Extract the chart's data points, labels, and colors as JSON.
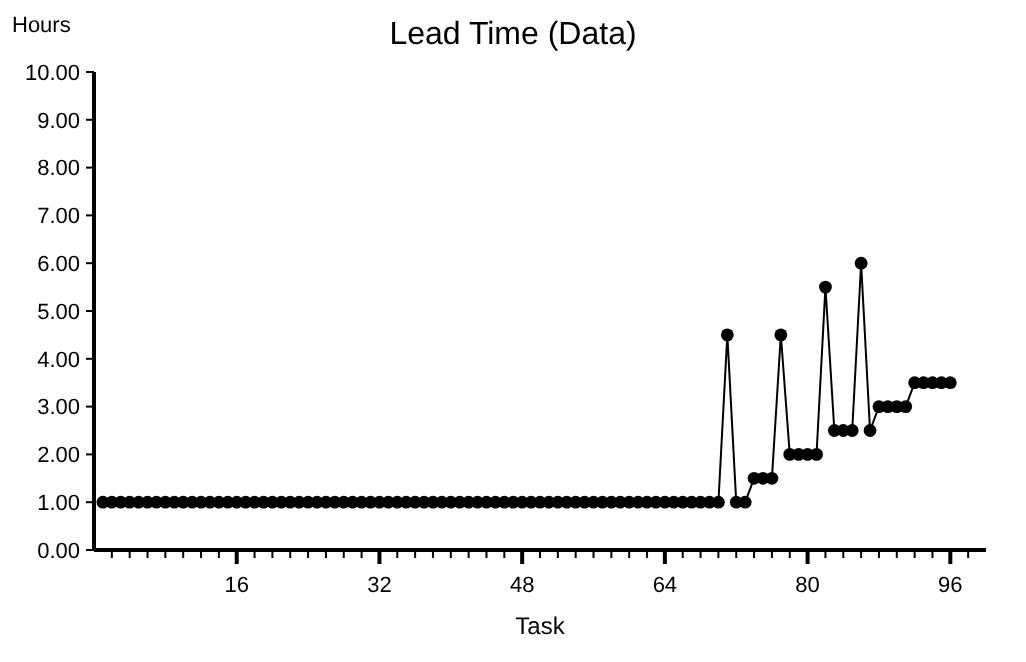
{
  "chart_data": {
    "type": "line",
    "title": "Lead Time (Data)",
    "xlabel": "Task",
    "ylabel": "Hours",
    "x": [
      1,
      2,
      3,
      4,
      5,
      6,
      7,
      8,
      9,
      10,
      11,
      12,
      13,
      14,
      15,
      16,
      17,
      18,
      19,
      20,
      21,
      22,
      23,
      24,
      25,
      26,
      27,
      28,
      29,
      30,
      31,
      32,
      33,
      34,
      35,
      36,
      37,
      38,
      39,
      40,
      41,
      42,
      43,
      44,
      45,
      46,
      47,
      48,
      49,
      50,
      51,
      52,
      53,
      54,
      55,
      56,
      57,
      58,
      59,
      60,
      61,
      62,
      63,
      64,
      65,
      66,
      67,
      68,
      69,
      70,
      71,
      72,
      73,
      74,
      75,
      76,
      77,
      78,
      79,
      80,
      81,
      82,
      83,
      84,
      85,
      86,
      87,
      88,
      89,
      90,
      91,
      92,
      93,
      94,
      95,
      96
    ],
    "series": [
      {
        "color": "#000000",
        "values": [
          1,
          1,
          1,
          1,
          1,
          1,
          1,
          1,
          1,
          1,
          1,
          1,
          1,
          1,
          1,
          1,
          1,
          1,
          1,
          1,
          1,
          1,
          1,
          1,
          1,
          1,
          1,
          1,
          1,
          1,
          1,
          1,
          1,
          1,
          1,
          1,
          1,
          1,
          1,
          1,
          1,
          1,
          1,
          1,
          1,
          1,
          1,
          1,
          1,
          1,
          1,
          1,
          1,
          1,
          1,
          1,
          1,
          1,
          1,
          1,
          1,
          1,
          1,
          1,
          1,
          1,
          1,
          1,
          1,
          1,
          4.5,
          1,
          1,
          1.5,
          1.5,
          1.5,
          4.5,
          2,
          2,
          2,
          2,
          5.5,
          2.5,
          2.5,
          2.5,
          6,
          2.5,
          3,
          3,
          3,
          3,
          3.5,
          3.5,
          3.5,
          3.5,
          3.5
        ]
      }
    ],
    "xlim": [
      0,
      100
    ],
    "xticks": [
      {
        "value": 2,
        "label": null
      },
      {
        "value": 4,
        "label": null
      },
      {
        "value": 6,
        "label": null
      },
      {
        "value": 8,
        "label": null
      },
      {
        "value": 10,
        "label": null
      },
      {
        "value": 12,
        "label": null
      },
      {
        "value": 14,
        "label": null
      },
      16,
      {
        "value": 18,
        "label": null
      },
      {
        "value": 20,
        "label": null
      },
      {
        "value": 22,
        "label": null
      },
      {
        "value": 24,
        "label": null
      },
      {
        "value": 26,
        "label": null
      },
      {
        "value": 28,
        "label": null
      },
      {
        "value": 30,
        "label": null
      },
      32,
      {
        "value": 34,
        "label": null
      },
      {
        "value": 36,
        "label": null
      },
      {
        "value": 38,
        "label": null
      },
      {
        "value": 40,
        "label": null
      },
      {
        "value": 42,
        "label": null
      },
      {
        "value": 44,
        "label": null
      },
      {
        "value": 46,
        "label": null
      },
      48,
      {
        "value": 50,
        "label": null
      },
      {
        "value": 52,
        "label": null
      },
      {
        "value": 54,
        "label": null
      },
      {
        "value": 56,
        "label": null
      },
      {
        "value": 58,
        "label": null
      },
      {
        "value": 60,
        "label": null
      },
      {
        "value": 62,
        "label": null
      },
      64,
      {
        "value": 66,
        "label": null
      },
      {
        "value": 68,
        "label": null
      },
      {
        "value": 70,
        "label": null
      },
      {
        "value": 72,
        "label": null
      },
      {
        "value": 74,
        "label": null
      },
      {
        "value": 76,
        "label": null
      },
      {
        "value": 78,
        "label": null
      },
      80,
      {
        "value": 82,
        "label": null
      },
      {
        "value": 84,
        "label": null
      },
      {
        "value": 86,
        "label": null
      },
      {
        "value": 88,
        "label": null
      },
      {
        "value": 90,
        "label": null
      },
      {
        "value": 92,
        "label": null
      },
      {
        "value": 94,
        "label": null
      },
      96,
      {
        "value": 98,
        "label": null
      }
    ],
    "ylim": [
      0,
      10
    ],
    "yticks": [
      {
        "value": 0,
        "label": "0.00"
      },
      {
        "value": 1,
        "label": "1.00"
      },
      {
        "value": 2,
        "label": "2.00"
      },
      {
        "value": 3,
        "label": "3.00"
      },
      {
        "value": 4,
        "label": "4.00"
      },
      {
        "value": 5,
        "label": "5.00"
      },
      {
        "value": 6,
        "label": "6.00"
      },
      {
        "value": 7,
        "label": "7.00"
      },
      {
        "value": 8,
        "label": "8.00"
      },
      {
        "value": 9,
        "label": "9.00"
      },
      {
        "value": 10,
        "label": "10.00"
      }
    ],
    "grid": false,
    "marker": "circle",
    "line_style": "solid"
  }
}
